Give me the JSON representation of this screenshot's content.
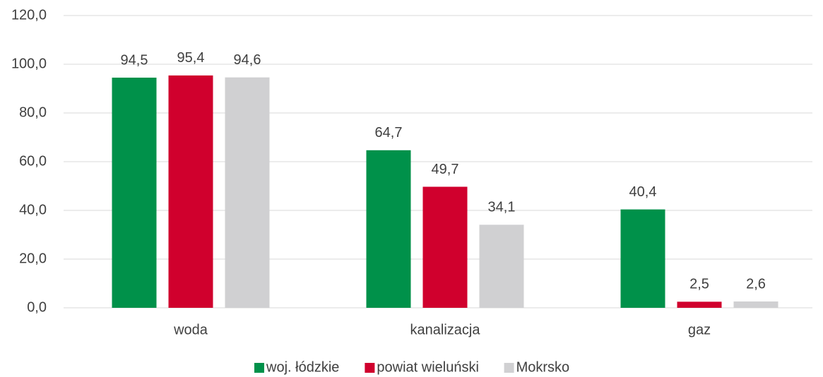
{
  "chart_data": {
    "type": "bar",
    "categories": [
      "woda",
      "kanalizacja",
      "gaz"
    ],
    "series": [
      {
        "name": "woj. łódzkie",
        "color": "#00914a",
        "values": [
          94.5,
          64.7,
          40.4
        ],
        "value_labels": [
          "94,5",
          "64,7",
          "40,4"
        ]
      },
      {
        "name": "powiat wieluński",
        "color": "#d0002d",
        "values": [
          95.4,
          49.7,
          2.5
        ],
        "value_labels": [
          "95,4",
          "49,7",
          "2,5"
        ]
      },
      {
        "name": "Mokrsko",
        "color": "#d0d0d2",
        "values": [
          94.6,
          34.1,
          2.6
        ],
        "value_labels": [
          "94,6",
          "34,1",
          "2,6"
        ]
      }
    ],
    "ylim": [
      0,
      120
    ],
    "yticks": [
      {
        "value": 0,
        "label": "0,0"
      },
      {
        "value": 20,
        "label": "20,0"
      },
      {
        "value": 40,
        "label": "40,0"
      },
      {
        "value": 60,
        "label": "60,0"
      },
      {
        "value": 80,
        "label": "80,0"
      },
      {
        "value": 100,
        "label": "100,0"
      },
      {
        "value": 120,
        "label": "120,0"
      }
    ],
    "grid": true,
    "legend": "bottom"
  }
}
